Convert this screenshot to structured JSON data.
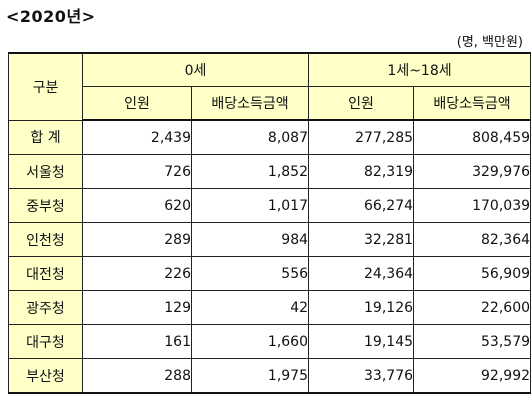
{
  "title": "<2020년>",
  "unit": "(명, 백만원)",
  "header": {
    "category": "구분",
    "group_0": "0세",
    "group_1_18": "1세~18세",
    "col_people": "인원",
    "col_amount": "배당소득금액"
  },
  "rows": [
    {
      "name": "합 계",
      "p0": "2,439",
      "a0": "8,087",
      "p1": "277,285",
      "a1": "808,459"
    },
    {
      "name": "서울청",
      "p0": "726",
      "a0": "1,852",
      "p1": "82,319",
      "a1": "329,976"
    },
    {
      "name": "중부청",
      "p0": "620",
      "a0": "1,017",
      "p1": "66,274",
      "a1": "170,039"
    },
    {
      "name": "인천청",
      "p0": "289",
      "a0": "984",
      "p1": "32,281",
      "a1": "82,364"
    },
    {
      "name": "대전청",
      "p0": "226",
      "a0": "556",
      "p1": "24,364",
      "a1": "56,909"
    },
    {
      "name": "광주청",
      "p0": "129",
      "a0": "42",
      "p1": "19,126",
      "a1": "22,600"
    },
    {
      "name": "대구청",
      "p0": "161",
      "a0": "1,660",
      "p1": "19,145",
      "a1": "53,579"
    },
    {
      "name": "부산청",
      "p0": "288",
      "a0": "1,975",
      "p1": "33,776",
      "a1": "92,992"
    }
  ]
}
